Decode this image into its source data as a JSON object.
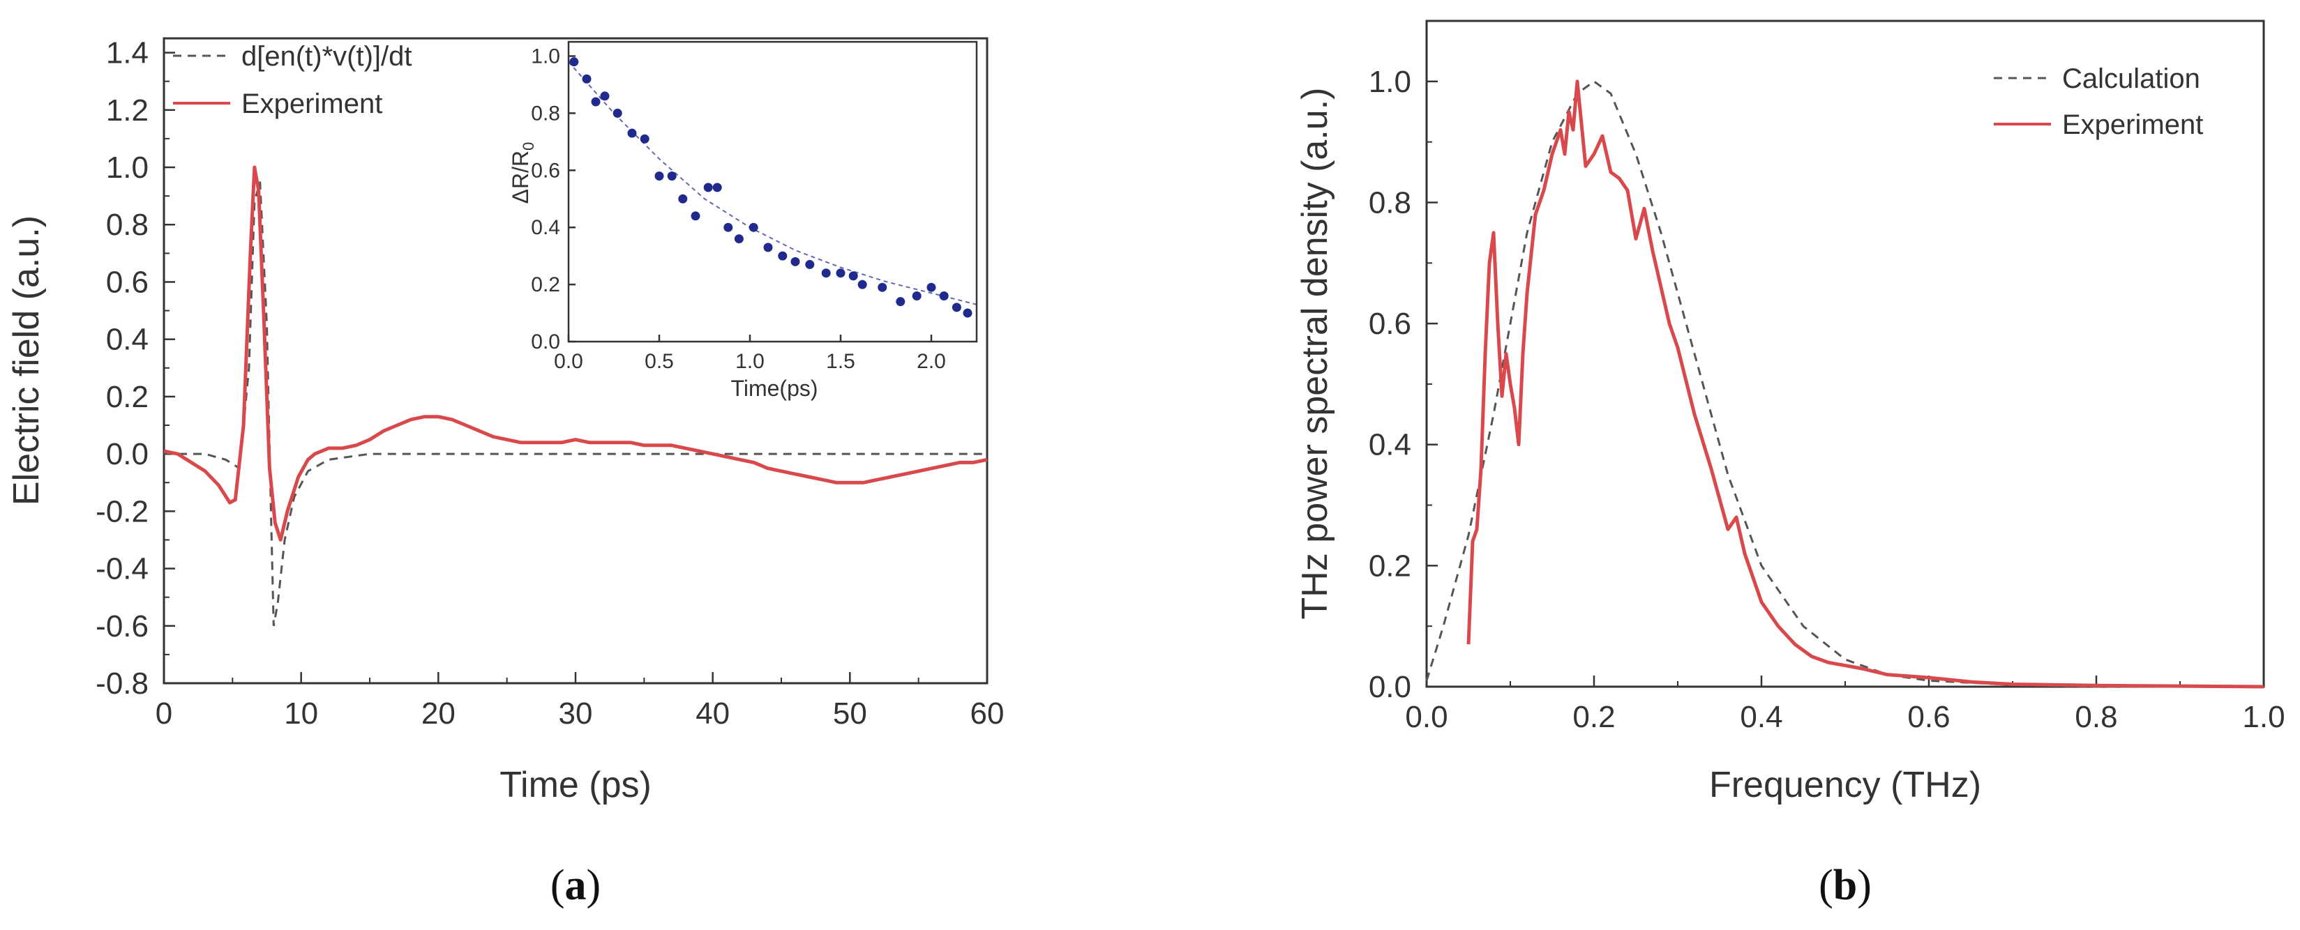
{
  "figure": {
    "panels": [
      "a",
      "b"
    ]
  },
  "colors": {
    "experiment": "#d9484a",
    "calculation": "#555555",
    "inset_points": "#1f2a8c",
    "axis": "#333333"
  },
  "chart_data": [
    {
      "id": "a",
      "type": "line",
      "panel_label": "a",
      "xlabel": "Time (ps)",
      "ylabel": "Electric field (a.u.)",
      "xlim": [
        0,
        60
      ],
      "ylim": [
        -0.8,
        1.45
      ],
      "xticks": [
        "0",
        "10",
        "20",
        "30",
        "40",
        "50",
        "60"
      ],
      "yticks": [
        "-0.8",
        "-0.6",
        "-0.4",
        "-0.2",
        "0.0",
        "0.2",
        "0.4",
        "0.6",
        "0.8",
        "1.0",
        "1.2",
        "1.4"
      ],
      "legend_position": "top-left",
      "series": [
        {
          "name": "d[en(t)*v(t)]/dt",
          "style": "dashed",
          "x": [
            0,
            3,
            4.5,
            5.5,
            6.2,
            6.6,
            7.0,
            7.5,
            7.8,
            8.0,
            8.3,
            8.8,
            9.5,
            10.5,
            12,
            15,
            20,
            30,
            40,
            50,
            60
          ],
          "y": [
            0,
            0,
            -0.02,
            -0.05,
            0.3,
            0.88,
            0.95,
            0.45,
            -0.2,
            -0.6,
            -0.52,
            -0.3,
            -0.15,
            -0.06,
            -0.02,
            0,
            0,
            0,
            0,
            0,
            0
          ]
        },
        {
          "name": "Experiment",
          "style": "solid",
          "x": [
            0,
            1,
            2,
            3,
            4,
            4.8,
            5.2,
            5.8,
            6.3,
            6.6,
            6.9,
            7.3,
            7.7,
            8.1,
            8.5,
            9.0,
            9.8,
            10.5,
            11,
            12,
            13,
            14,
            15,
            16,
            17,
            18,
            19,
            20,
            21,
            22,
            23,
            24,
            25,
            26,
            27,
            28,
            29,
            30,
            31,
            32,
            33,
            34,
            35,
            36,
            37,
            38,
            39,
            40,
            41,
            42,
            43,
            44,
            45,
            46,
            47,
            48,
            49,
            50,
            51,
            52,
            53,
            54,
            55,
            56,
            57,
            58,
            59,
            60
          ],
          "y": [
            0.01,
            0.0,
            -0.03,
            -0.06,
            -0.11,
            -0.17,
            -0.16,
            0.1,
            0.7,
            1.0,
            0.92,
            0.45,
            -0.05,
            -0.24,
            -0.3,
            -0.2,
            -0.08,
            -0.02,
            0.0,
            0.02,
            0.02,
            0.03,
            0.05,
            0.08,
            0.1,
            0.12,
            0.13,
            0.13,
            0.12,
            0.1,
            0.08,
            0.06,
            0.05,
            0.04,
            0.04,
            0.04,
            0.04,
            0.05,
            0.04,
            0.04,
            0.04,
            0.04,
            0.03,
            0.03,
            0.03,
            0.02,
            0.01,
            0.0,
            -0.01,
            -0.02,
            -0.03,
            -0.05,
            -0.06,
            -0.07,
            -0.08,
            -0.09,
            -0.1,
            -0.1,
            -0.1,
            -0.09,
            -0.08,
            -0.07,
            -0.06,
            -0.05,
            -0.04,
            -0.03,
            -0.03,
            -0.02
          ]
        }
      ],
      "inset": {
        "type": "scatter",
        "xlabel": "Time(ps)",
        "ylabel": "ΔR/R",
        "ylabel_subscript": "0",
        "xlim": [
          0,
          2.25
        ],
        "ylim": [
          0,
          1.05
        ],
        "xticks": [
          "0.0",
          "0.5",
          "1.0",
          "1.5",
          "2.0"
        ],
        "yticks": [
          "0.0",
          "0.2",
          "0.4",
          "0.6",
          "0.8",
          "1.0"
        ],
        "points": {
          "x": [
            0.03,
            0.1,
            0.15,
            0.2,
            0.27,
            0.35,
            0.42,
            0.5,
            0.57,
            0.63,
            0.7,
            0.77,
            0.82,
            0.88,
            0.94,
            1.02,
            1.1,
            1.18,
            1.25,
            1.33,
            1.42,
            1.5,
            1.57,
            1.62,
            1.73,
            1.83,
            1.92,
            2.0,
            2.07,
            2.14,
            2.2
          ],
          "y": [
            0.98,
            0.92,
            0.84,
            0.86,
            0.8,
            0.73,
            0.71,
            0.58,
            0.58,
            0.5,
            0.44,
            0.54,
            0.54,
            0.4,
            0.36,
            0.4,
            0.33,
            0.3,
            0.28,
            0.27,
            0.24,
            0.24,
            0.23,
            0.2,
            0.19,
            0.14,
            0.16,
            0.19,
            0.16,
            0.12,
            0.1
          ]
        },
        "fit": {
          "x": [
            0,
            0.25,
            0.5,
            0.75,
            1.0,
            1.25,
            1.5,
            1.75,
            2.0,
            2.25
          ],
          "y": [
            0.98,
            0.8,
            0.64,
            0.5,
            0.4,
            0.32,
            0.26,
            0.21,
            0.17,
            0.13
          ]
        }
      }
    },
    {
      "id": "b",
      "type": "line",
      "panel_label": "b",
      "xlabel": "Frequency (THz)",
      "ylabel": "THz power spectral density (a.u.)",
      "xlim": [
        0,
        1.0
      ],
      "ylim": [
        0,
        1.1
      ],
      "xticks": [
        "0.0",
        "0.2",
        "0.4",
        "0.6",
        "0.8",
        "1.0"
      ],
      "yticks": [
        "0.0",
        "0.2",
        "0.4",
        "0.6",
        "0.8",
        "1.0"
      ],
      "legend_position": "top-right",
      "series": [
        {
          "name": "Calculation",
          "style": "dashed",
          "x": [
            0.0,
            0.02,
            0.05,
            0.08,
            0.1,
            0.12,
            0.15,
            0.18,
            0.2,
            0.22,
            0.25,
            0.28,
            0.3,
            0.33,
            0.36,
            0.4,
            0.45,
            0.5,
            0.55,
            0.6,
            0.7,
            0.8,
            1.0
          ],
          "y": [
            0.01,
            0.1,
            0.25,
            0.45,
            0.6,
            0.75,
            0.9,
            0.98,
            1.0,
            0.98,
            0.88,
            0.75,
            0.65,
            0.5,
            0.35,
            0.2,
            0.1,
            0.045,
            0.02,
            0.01,
            0.003,
            0.0,
            0.0
          ]
        },
        {
          "name": "Experiment",
          "style": "solid",
          "x": [
            0.05,
            0.055,
            0.06,
            0.065,
            0.07,
            0.075,
            0.08,
            0.085,
            0.09,
            0.095,
            0.1,
            0.105,
            0.11,
            0.115,
            0.12,
            0.13,
            0.14,
            0.15,
            0.16,
            0.165,
            0.17,
            0.175,
            0.18,
            0.185,
            0.19,
            0.2,
            0.21,
            0.22,
            0.23,
            0.24,
            0.25,
            0.26,
            0.27,
            0.28,
            0.29,
            0.3,
            0.32,
            0.34,
            0.36,
            0.37,
            0.38,
            0.4,
            0.42,
            0.44,
            0.46,
            0.48,
            0.5,
            0.52,
            0.55,
            0.6,
            0.65,
            0.7,
            0.8,
            0.9,
            1.0
          ],
          "y": [
            0.07,
            0.24,
            0.26,
            0.36,
            0.55,
            0.7,
            0.75,
            0.6,
            0.48,
            0.55,
            0.5,
            0.46,
            0.4,
            0.55,
            0.65,
            0.78,
            0.82,
            0.88,
            0.92,
            0.88,
            0.95,
            0.92,
            1.0,
            0.93,
            0.86,
            0.88,
            0.91,
            0.85,
            0.84,
            0.82,
            0.74,
            0.79,
            0.72,
            0.66,
            0.6,
            0.56,
            0.45,
            0.36,
            0.26,
            0.28,
            0.22,
            0.14,
            0.1,
            0.07,
            0.05,
            0.04,
            0.035,
            0.03,
            0.02,
            0.015,
            0.008,
            0.004,
            0.002,
            0.001,
            0.0
          ]
        }
      ]
    }
  ]
}
